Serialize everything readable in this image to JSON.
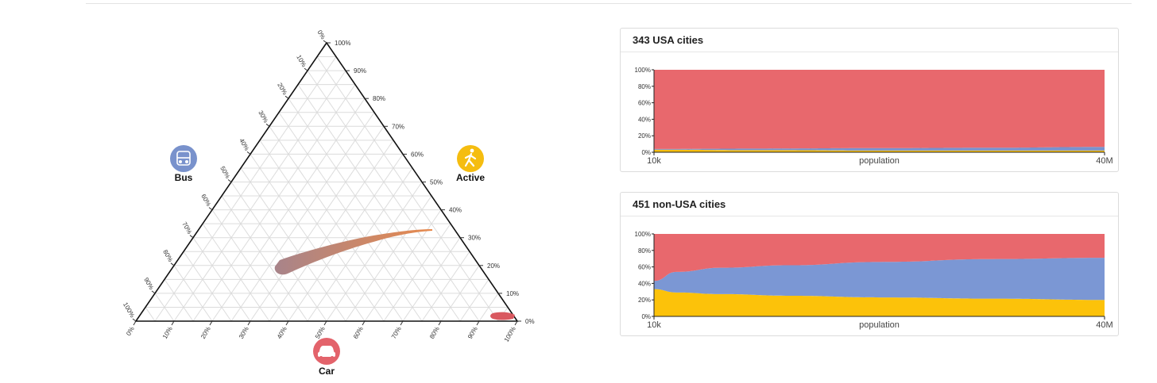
{
  "ternary": {
    "corners": {
      "bus": {
        "label": "Bus",
        "icon": "bus-icon",
        "color": "#7992cc"
      },
      "active": {
        "label": "Active",
        "icon": "walking-person-icon",
        "color": "#f5bd10"
      },
      "car": {
        "label": "Car",
        "icon": "car-icon",
        "color": "#e3636b"
      }
    },
    "tick_labels": [
      "0%",
      "10%",
      "20%",
      "30%",
      "40%",
      "50%",
      "60%",
      "70%",
      "80%",
      "90%",
      "100%"
    ]
  },
  "chart_data": [
    {
      "type": "area",
      "title": "343 USA cities",
      "xlabel": "population",
      "x_tick_labels": [
        "10k",
        "40M"
      ],
      "y_tick_labels": [
        "0%",
        "20%",
        "40%",
        "60%",
        "80%",
        "100%"
      ],
      "ylim": [
        0,
        100
      ],
      "x": [
        0,
        0.25,
        0.5,
        0.75,
        1
      ],
      "series": [
        {
          "color": "#f5bd10",
          "values": [
            3,
            2.5,
            2,
            2,
            2
          ]
        },
        {
          "color": "#7992cc",
          "values": [
            1,
            2,
            3,
            3.5,
            4.5
          ]
        },
        {
          "color": "#e8686d",
          "values": [
            96,
            95.5,
            95,
            94.5,
            93.5
          ]
        }
      ]
    },
    {
      "type": "area",
      "title": "451 non-USA cities",
      "xlabel": "population",
      "x_tick_labels": [
        "10k",
        "40M"
      ],
      "y_tick_labels": [
        "0%",
        "20%",
        "40%",
        "60%",
        "80%",
        "100%"
      ],
      "ylim": [
        0,
        100
      ],
      "x": [
        0,
        0.05,
        0.15,
        0.3,
        0.5,
        0.75,
        1
      ],
      "series": [
        {
          "color": "#fcc20a",
          "values": [
            33,
            29,
            27,
            25,
            23,
            21.5,
            20
          ]
        },
        {
          "color": "#7b97d4",
          "values": [
            10,
            25,
            32,
            37,
            43,
            48,
            51
          ]
        },
        {
          "color": "#e8686d",
          "values": [
            57,
            46,
            41,
            38,
            34,
            30.5,
            29
          ]
        }
      ]
    }
  ]
}
